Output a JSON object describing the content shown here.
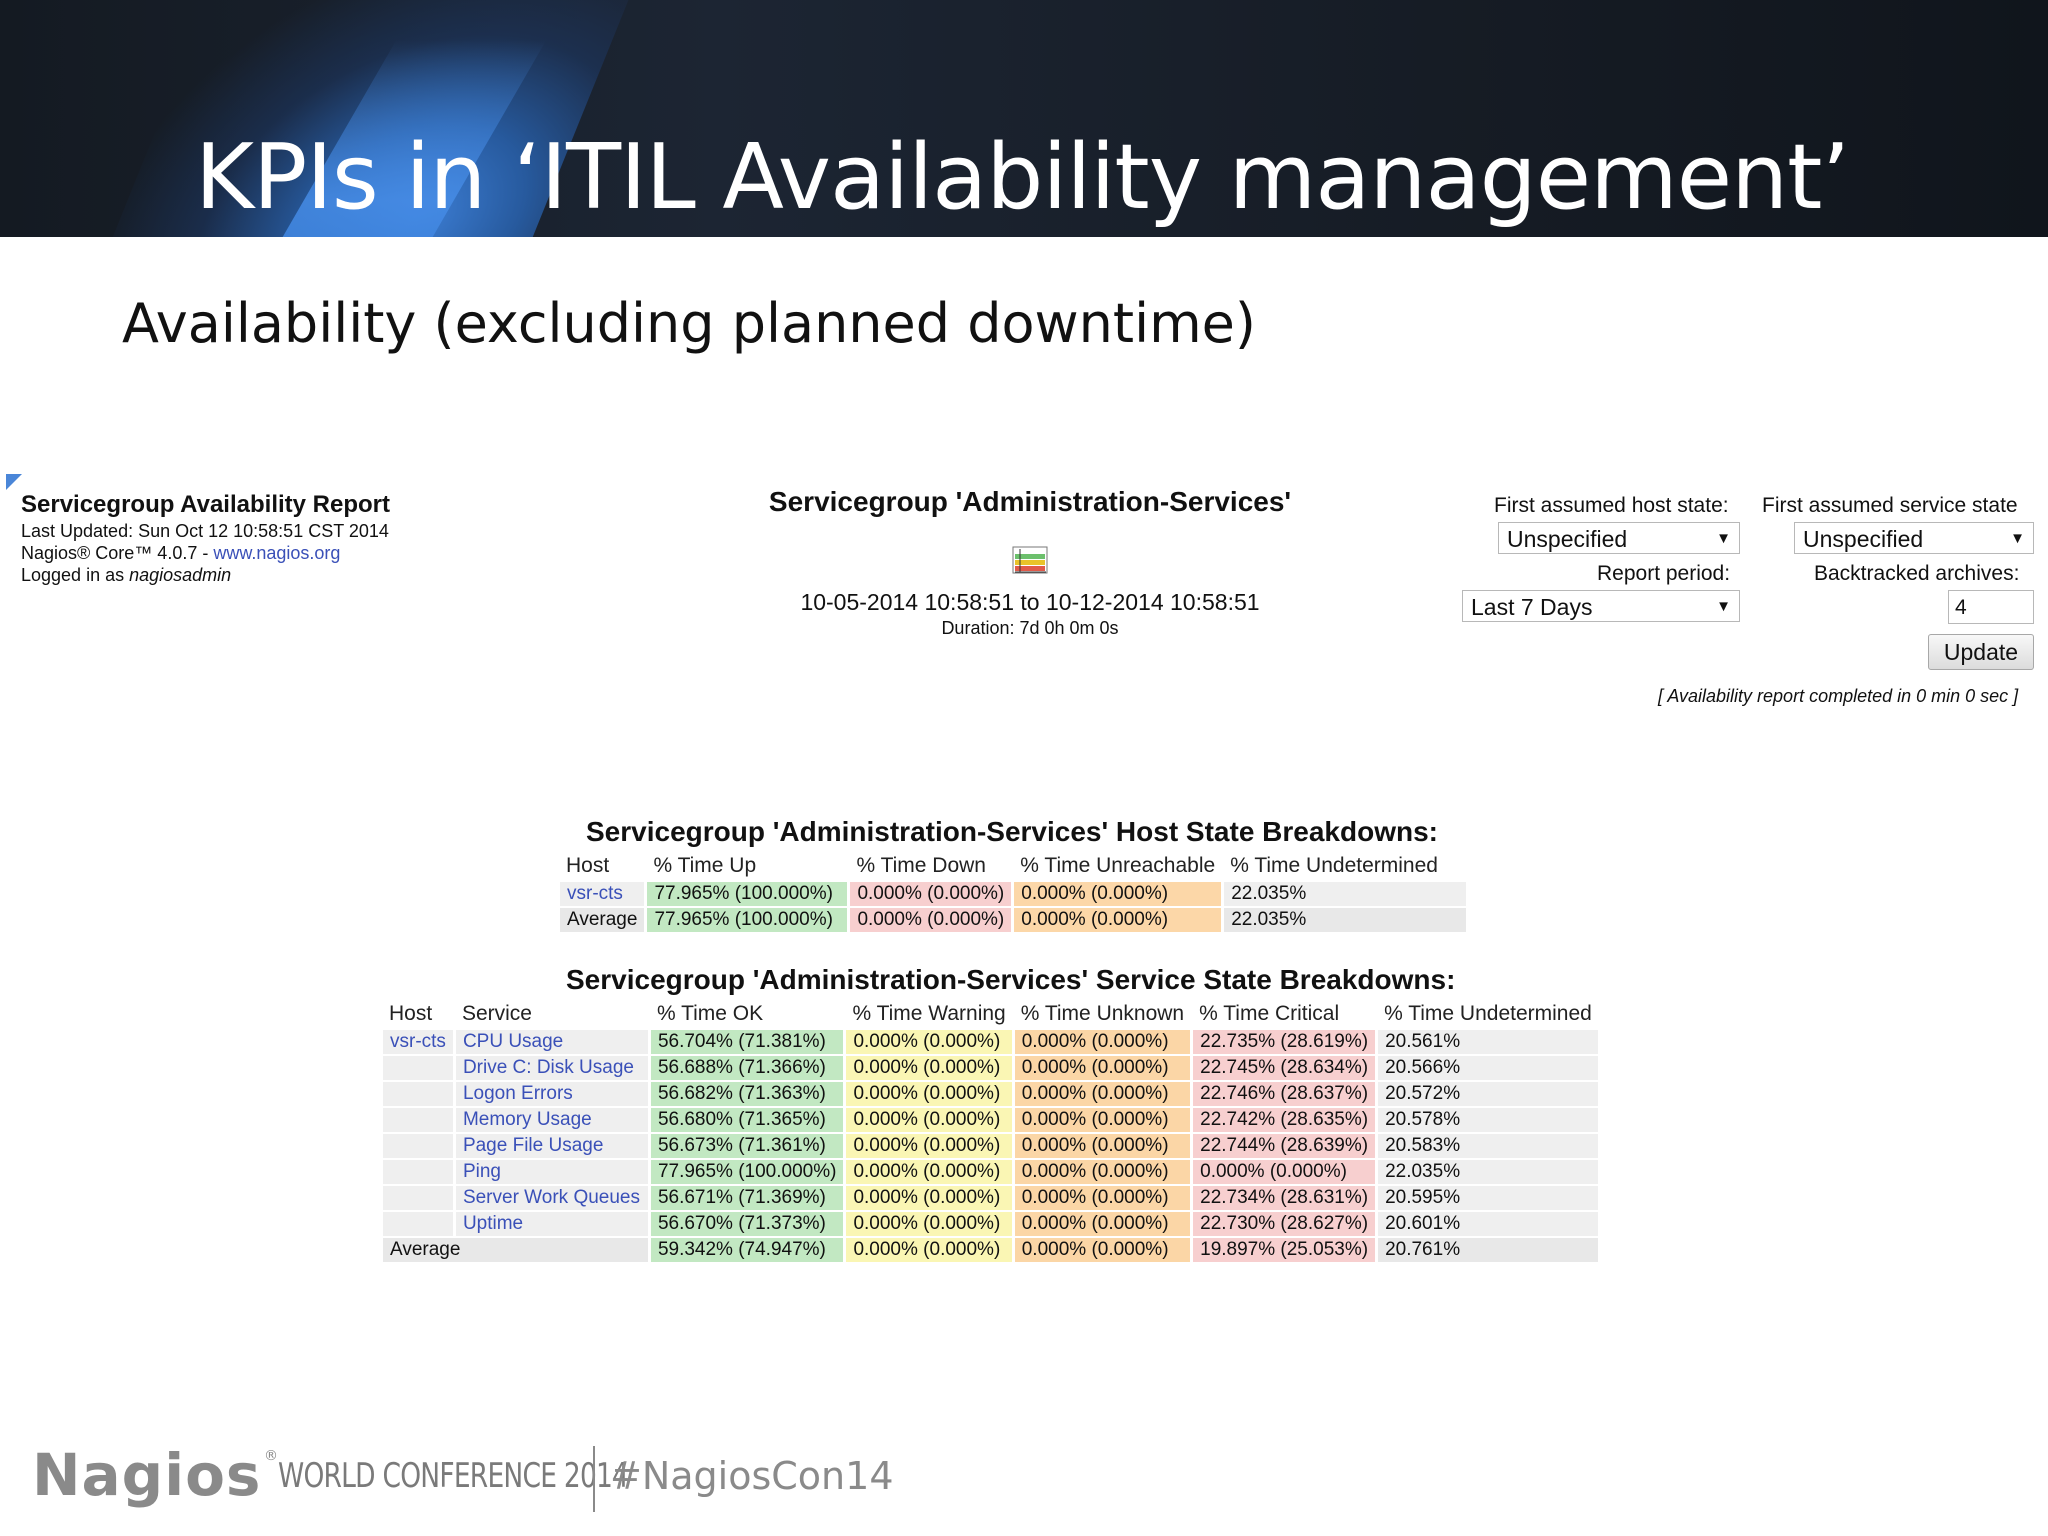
{
  "slide": {
    "title": "KPIs in ‘ITIL Availability management’",
    "subtitle": "Availability (excluding planned downtime)"
  },
  "report": {
    "title": "Servicegroup Availability Report",
    "last_updated": "Last Updated: Sun Oct 12 10:58:51 CST 2014",
    "core_prefix": "Nagios® Core™ 4.0.7 - ",
    "core_link": "www.nagios.org",
    "logged_in_prefix": "Logged in as ",
    "logged_in_user": "nagiosadmin",
    "servicegroup_title": "Servicegroup 'Administration-Services'",
    "range": "10-05-2014 10:58:51 to 10-12-2014 10:58:51",
    "duration": "Duration: 7d 0h 0m 0s",
    "trend_icon": "trends-icon",
    "completed_note": "[ Availability report completed in 0 min 0 sec ]"
  },
  "controls": {
    "host_state_label": "First assumed host state:",
    "host_state_value": "Unspecified",
    "service_state_label": "First assumed service state",
    "service_state_value": "Unspecified",
    "report_period_label": "Report period:",
    "report_period_value": "Last 7 Days",
    "backtracked_label": "Backtracked archives:",
    "backtracked_value": "4",
    "update_label": "Update"
  },
  "host_table": {
    "title": "Servicegroup 'Administration-Services' Host State Breakdowns:",
    "headers": [
      "Host",
      "% Time Up",
      "% Time Down",
      "% Time Unreachable",
      "% Time Undetermined"
    ],
    "rows": [
      [
        "vsr-cts",
        "77.965% (100.000%)",
        "0.000% (0.000%)",
        "0.000% (0.000%)",
        "22.035%"
      ],
      [
        "Average",
        "77.965% (100.000%)",
        "0.000% (0.000%)",
        "0.000% (0.000%)",
        "22.035%"
      ]
    ]
  },
  "service_table": {
    "title": "Servicegroup 'Administration-Services' Service State Breakdowns:",
    "headers": [
      "Host",
      "Service",
      "% Time OK",
      "% Time Warning",
      "% Time Unknown",
      "% Time Critical",
      "% Time Undetermined"
    ],
    "rows": [
      [
        "vsr-cts",
        "CPU Usage",
        "56.704% (71.381%)",
        "0.000% (0.000%)",
        "0.000% (0.000%)",
        "22.735% (28.619%)",
        "20.561%"
      ],
      [
        "",
        "Drive C: Disk Usage",
        "56.688% (71.366%)",
        "0.000% (0.000%)",
        "0.000% (0.000%)",
        "22.745% (28.634%)",
        "20.566%"
      ],
      [
        "",
        "Logon Errors",
        "56.682% (71.363%)",
        "0.000% (0.000%)",
        "0.000% (0.000%)",
        "22.746% (28.637%)",
        "20.572%"
      ],
      [
        "",
        "Memory Usage",
        "56.680% (71.365%)",
        "0.000% (0.000%)",
        "0.000% (0.000%)",
        "22.742% (28.635%)",
        "20.578%"
      ],
      [
        "",
        "Page File Usage",
        "56.673% (71.361%)",
        "0.000% (0.000%)",
        "0.000% (0.000%)",
        "22.744% (28.639%)",
        "20.583%"
      ],
      [
        "",
        "Ping",
        "77.965% (100.000%)",
        "0.000% (0.000%)",
        "0.000% (0.000%)",
        "0.000% (0.000%)",
        "22.035%"
      ],
      [
        "",
        "Server Work Queues",
        "56.671% (71.369%)",
        "0.000% (0.000%)",
        "0.000% (0.000%)",
        "22.734% (28.631%)",
        "20.595%"
      ],
      [
        "",
        "Uptime",
        "56.670% (71.373%)",
        "0.000% (0.000%)",
        "0.000% (0.000%)",
        "22.730% (28.627%)",
        "20.601%"
      ]
    ],
    "average": [
      "Average",
      "59.342% (74.947%)",
      "0.000% (0.000%)",
      "0.000% (0.000%)",
      "19.897% (25.053%)",
      "20.761%"
    ]
  },
  "footer": {
    "logo": "Nagios",
    "reg": "®",
    "conference": "WORLD CONFERENCE 2014",
    "hashtag": "#NagiosCon14"
  },
  "colors": {
    "ok": "#c2e8c2",
    "down_critical": "#f7cfcf",
    "unreachable_unknown": "#fcd7a8",
    "warning": "#faf6b4",
    "link": "#3a50b8"
  }
}
